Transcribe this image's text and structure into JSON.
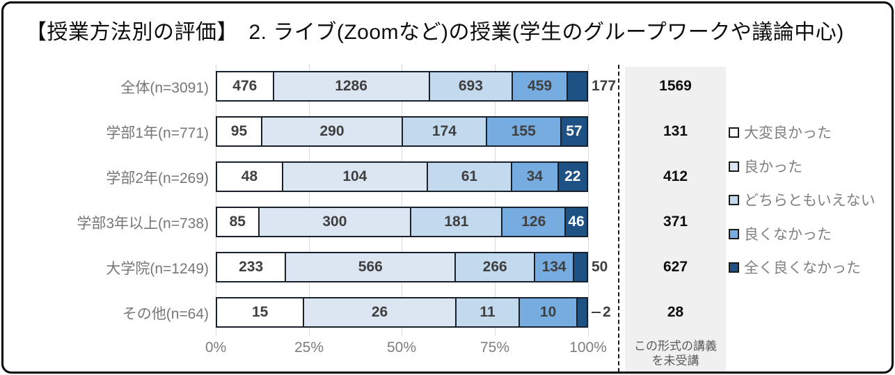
{
  "title": "【授業方法別の評価】　2. ライブ(Zoomなど)の授業(学生のグループワークや議論中心)",
  "chart_data": {
    "type": "bar",
    "variant": "horizontal-stacked-100percent",
    "title": "【授業方法別の評価】　2. ライブ(Zoomなど)の授業(学生のグループワークや議論中心)",
    "categories": [
      "全体(n=3091)",
      "学部1年(n=771)",
      "学部2年(n=269)",
      "学部3年以上(n=738)",
      "大学院(n=1249)",
      "その他(n=64)"
    ],
    "totals": [
      3091,
      771,
      269,
      738,
      1249,
      64
    ],
    "series": [
      {
        "name": "大変良かった",
        "color": "#ffffff",
        "values": [
          476,
          95,
          48,
          85,
          233,
          15
        ]
      },
      {
        "name": "良かった",
        "color": "#dce6f2",
        "values": [
          1286,
          290,
          104,
          300,
          566,
          26
        ]
      },
      {
        "name": "どちらともいえない",
        "color": "#c2d9ee",
        "values": [
          693,
          174,
          61,
          181,
          266,
          11
        ]
      },
      {
        "name": "良くなかった",
        "color": "#76ace0",
        "values": [
          459,
          155,
          34,
          126,
          134,
          10
        ]
      },
      {
        "name": "全く良くなかった",
        "color": "#1e5184",
        "values": [
          177,
          57,
          22,
          46,
          50,
          2
        ]
      }
    ],
    "not_attended": {
      "label": "この形式の講義を未受講",
      "label_lines": [
        "この形式の講義",
        "を未受講"
      ],
      "values": [
        1569,
        131,
        412,
        371,
        627,
        28
      ]
    },
    "x_ticks": [
      "0%",
      "25%",
      "50%",
      "75%",
      "100%"
    ],
    "xlim": [
      0,
      100
    ],
    "grid": true,
    "legend_position": "right"
  },
  "colors": {
    "segment_border": "#17202b",
    "gridline": "#d9d9d9",
    "not_attended_box_bg": "#f0f0f0",
    "separator_dash": "#1a1a1a",
    "category_label_text": "#767676",
    "data_label_text": "#3f3f3f",
    "frame_border": "#000000"
  }
}
